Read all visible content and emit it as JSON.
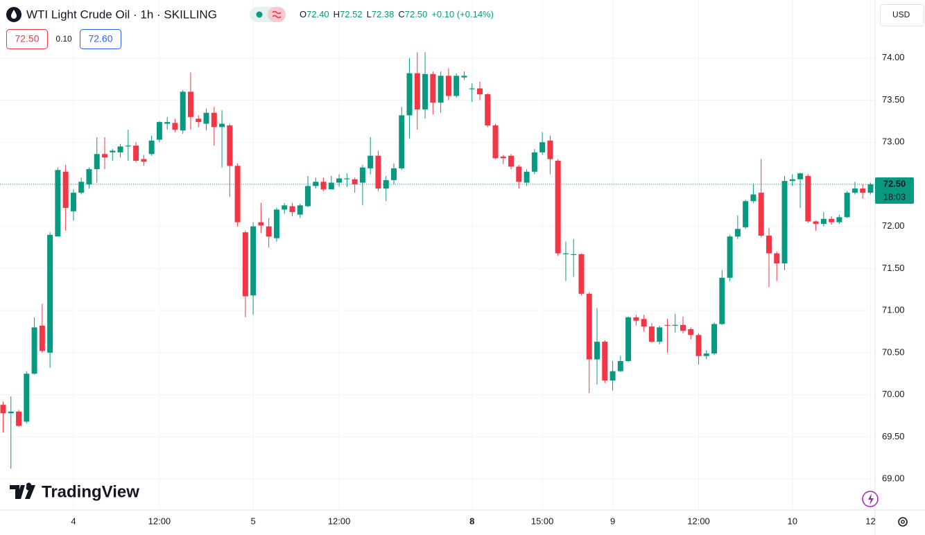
{
  "header": {
    "symbol": "WTI Light Crude Oil · 1h · SKILLING",
    "ohlc": [
      {
        "label": "O",
        "value": "72.40"
      },
      {
        "label": "H",
        "value": "72.52"
      },
      {
        "label": "L",
        "value": "72.38"
      },
      {
        "label": "C",
        "value": "72.50"
      }
    ],
    "change": "+0.10 (+0.14%)",
    "sell": "72.50",
    "spread": "0.10",
    "buy": "72.60",
    "currency": "USD",
    "logo": "TradingView"
  },
  "chart_data": {
    "type": "candlestick",
    "up_color": "#089981",
    "down_color": "#f23645",
    "grid": true,
    "categories": [
      null,
      null,
      null,
      null,
      null,
      null,
      null,
      null,
      null,
      "4",
      null,
      null,
      null,
      null,
      null,
      null,
      null,
      null,
      null,
      null,
      "12:00",
      null,
      null,
      null,
      null,
      null,
      null,
      null,
      null,
      null,
      null,
      null,
      "5",
      null,
      null,
      null,
      null,
      null,
      null,
      null,
      null,
      null,
      null,
      "12:00",
      null,
      null,
      null,
      null,
      null,
      null,
      null,
      null,
      null,
      null,
      null,
      null,
      null,
      null,
      null,
      null,
      "8",
      null,
      null,
      null,
      null,
      null,
      null,
      null,
      null,
      "15:00",
      null,
      null,
      null,
      null,
      null,
      null,
      null,
      null,
      "9",
      null,
      null,
      null,
      null,
      null,
      null,
      null,
      null,
      null,
      null,
      "12:00",
      null,
      null,
      null,
      null,
      null,
      null,
      null,
      null,
      null,
      null,
      null,
      "10",
      null,
      null,
      null,
      null,
      null,
      null,
      null,
      null,
      null,
      "12"
    ],
    "open": [
      69.88,
      69.78,
      69.8,
      69.68,
      70.25,
      70.82,
      70.5,
      71.88,
      72.65,
      72.18,
      72.4,
      72.5,
      72.68,
      72.86,
      72.88,
      72.88,
      72.95,
      72.96,
      72.8,
      72.86,
      73.03,
      73.22,
      73.23,
      73.14,
      73.6,
      73.28,
      73.22,
      73.35,
      73.18,
      73.2,
      72.72,
      71.93,
      71.18,
      72.05,
      72.0,
      71.86,
      72.2,
      72.24,
      72.14,
      72.24,
      72.48,
      72.53,
      72.44,
      72.52,
      72.56,
      72.56,
      72.52,
      72.69,
      72.84,
      72.45,
      72.55,
      72.69,
      73.32,
      73.82,
      73.39,
      73.81,
      73.47,
      73.79,
      73.55,
      73.77,
      73.63,
      73.64,
      73.57,
      73.2,
      72.83,
      72.84,
      72.71,
      72.52,
      72.65,
      72.88,
      73.02,
      72.78,
      71.67,
      71.66,
      71.67,
      71.2,
      70.42,
      70.63,
      70.17,
      70.28,
      70.4,
      70.92,
      70.9,
      70.81,
      70.63,
      70.83,
      70.82,
      70.83,
      70.78,
      70.71,
      70.46,
      70.49,
      70.84,
      71.39,
      71.88,
      71.99,
      72.3,
      72.4,
      71.89,
      71.68,
      71.56,
      72.54,
      72.56,
      72.6,
      72.06,
      72.03,
      72.09,
      72.05,
      72.11,
      72.4,
      72.45,
      72.4
    ],
    "high": [
      69.92,
      69.98,
      69.82,
      70.28,
      70.92,
      71.08,
      71.93,
      72.7,
      72.73,
      72.44,
      72.58,
      72.7,
      73.06,
      73.06,
      72.92,
      72.98,
      73.15,
      73.0,
      72.85,
      73.08,
      73.25,
      73.3,
      73.28,
      73.62,
      73.83,
      73.32,
      73.4,
      73.42,
      73.38,
      73.22,
      72.75,
      71.95,
      72.05,
      72.28,
      72.1,
      72.22,
      72.28,
      72.28,
      72.27,
      72.6,
      72.58,
      72.58,
      72.6,
      72.62,
      72.63,
      72.58,
      72.73,
      73.06,
      72.9,
      72.6,
      72.75,
      73.42,
      74.0,
      74.07,
      74.07,
      73.84,
      73.84,
      73.88,
      73.82,
      73.84,
      73.7,
      73.72,
      73.58,
      73.22,
      72.85,
      72.86,
      72.73,
      72.68,
      72.92,
      73.12,
      73.08,
      72.8,
      71.82,
      71.85,
      71.68,
      71.22,
      71.03,
      70.65,
      70.4,
      70.46,
      70.93,
      70.95,
      70.95,
      70.85,
      70.82,
      70.9,
      70.96,
      70.93,
      70.8,
      70.73,
      70.53,
      70.86,
      71.48,
      71.9,
      72.13,
      72.32,
      72.51,
      72.8,
      71.98,
      71.7,
      72.6,
      72.62,
      72.64,
      72.62,
      72.07,
      72.17,
      72.12,
      72.14,
      72.42,
      72.53,
      72.5,
      72.52
    ],
    "low": [
      69.55,
      69.12,
      69.62,
      69.66,
      70.24,
      70.5,
      70.32,
      71.88,
      71.95,
      72.07,
      72.38,
      72.45,
      72.52,
      72.68,
      72.78,
      72.82,
      72.78,
      72.76,
      72.72,
      72.84,
      73.0,
      73.15,
      73.12,
      73.1,
      73.15,
      73.18,
      73.14,
      72.96,
      72.7,
      72.35,
      72.0,
      70.92,
      70.95,
      71.92,
      71.75,
      71.82,
      72.15,
      72.12,
      72.1,
      72.23,
      72.45,
      72.42,
      72.44,
      72.47,
      72.47,
      72.4,
      72.25,
      72.62,
      72.42,
      72.3,
      72.5,
      72.67,
      73.04,
      73.15,
      73.28,
      73.33,
      73.35,
      73.5,
      73.53,
      73.74,
      73.48,
      73.5,
      73.18,
      72.8,
      72.74,
      72.68,
      72.45,
      72.48,
      72.62,
      72.85,
      72.62,
      71.65,
      71.35,
      71.4,
      71.18,
      70.02,
      70.12,
      70.14,
      70.05,
      70.27,
      70.39,
      70.82,
      70.75,
      70.62,
      70.6,
      70.5,
      70.74,
      70.73,
      70.66,
      70.36,
      70.42,
      70.47,
      70.83,
      71.35,
      71.85,
      71.97,
      72.28,
      71.87,
      71.28,
      71.35,
      71.48,
      72.48,
      72.22,
      72.04,
      71.95,
      72.0,
      72.02,
      72.03,
      72.1,
      72.38,
      72.33,
      72.38
    ],
    "close": [
      69.78,
      69.8,
      69.63,
      70.25,
      70.8,
      70.52,
      71.9,
      72.67,
      72.22,
      72.4,
      72.53,
      72.68,
      72.86,
      72.82,
      72.9,
      72.95,
      72.96,
      72.78,
      72.77,
      73.02,
      73.24,
      73.24,
      73.15,
      73.6,
      73.3,
      73.24,
      73.35,
      73.18,
      73.22,
      72.72,
      72.05,
      71.17,
      72.0,
      72.01,
      71.88,
      72.2,
      72.25,
      72.17,
      72.25,
      72.48,
      72.53,
      72.44,
      72.52,
      72.57,
      72.57,
      72.5,
      72.7,
      72.84,
      72.45,
      72.55,
      72.69,
      73.32,
      73.82,
      73.39,
      73.81,
      73.47,
      73.79,
      73.55,
      73.79,
      73.79,
      73.64,
      73.57,
      73.2,
      72.81,
      72.81,
      72.71,
      72.53,
      72.65,
      72.88,
      73.0,
      72.8,
      71.68,
      71.68,
      71.67,
      71.2,
      70.42,
      70.63,
      70.17,
      70.28,
      70.4,
      70.92,
      70.88,
      70.81,
      70.63,
      70.8,
      70.82,
      70.83,
      70.76,
      70.71,
      70.46,
      70.49,
      70.84,
      71.39,
      71.88,
      71.97,
      72.3,
      72.38,
      71.89,
      71.68,
      71.56,
      72.54,
      72.56,
      72.63,
      72.06,
      72.03,
      72.09,
      72.05,
      72.11,
      72.4,
      72.45,
      72.4,
      72.5
    ],
    "ylim": [
      68.63,
      74.69
    ],
    "yticks": [
      {
        "value": 69,
        "label": "69.00"
      },
      {
        "value": 69.5,
        "label": "69.50"
      },
      {
        "value": 70,
        "label": "70.00"
      },
      {
        "value": 70.5,
        "label": "70.50"
      },
      {
        "value": 71,
        "label": "71.00"
      },
      {
        "value": 71.5,
        "label": "71.50"
      },
      {
        "value": 72,
        "label": "72.00"
      },
      {
        "value": 72.5,
        "label": "72.50"
      },
      {
        "value": 73,
        "label": "73.00"
      },
      {
        "value": 73.5,
        "label": "73.50"
      },
      {
        "value": 74,
        "label": "74.00"
      }
    ],
    "last_price": {
      "value": 72.5,
      "label": "72.50",
      "countdown": "18:03"
    }
  }
}
